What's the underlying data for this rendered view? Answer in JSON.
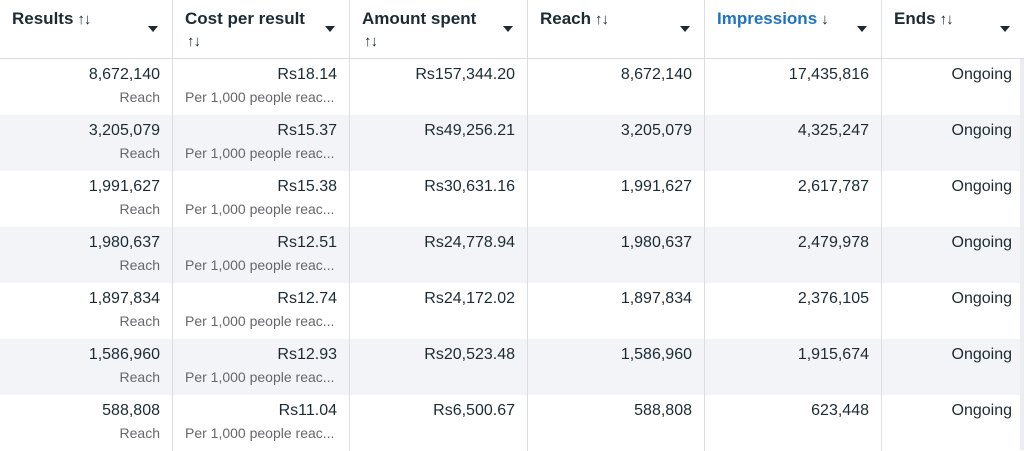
{
  "columns": [
    {
      "label": "Results",
      "sort_icon": "↑↓"
    },
    {
      "label": "Cost per result",
      "sort_icon": "↑↓"
    },
    {
      "label": "Amount spent",
      "sort_icon": "↑↓"
    },
    {
      "label": "Reach",
      "sort_icon": "↑↓"
    },
    {
      "label": "Impressions",
      "sort_icon": "↓"
    },
    {
      "label": "Ends",
      "sort_icon": "↑↓"
    }
  ],
  "rows": [
    {
      "results": "8,672,140",
      "results_sub": "Reach",
      "cost": "Rs18.14",
      "cost_sub": "Per 1,000 people reac...",
      "spent": "Rs157,344.20",
      "reach": "8,672,140",
      "impressions": "17,435,816",
      "ends": "Ongoing"
    },
    {
      "results": "3,205,079",
      "results_sub": "Reach",
      "cost": "Rs15.37",
      "cost_sub": "Per 1,000 people reac...",
      "spent": "Rs49,256.21",
      "reach": "3,205,079",
      "impressions": "4,325,247",
      "ends": "Ongoing"
    },
    {
      "results": "1,991,627",
      "results_sub": "Reach",
      "cost": "Rs15.38",
      "cost_sub": "Per 1,000 people reac...",
      "spent": "Rs30,631.16",
      "reach": "1,991,627",
      "impressions": "2,617,787",
      "ends": "Ongoing"
    },
    {
      "results": "1,980,637",
      "results_sub": "Reach",
      "cost": "Rs12.51",
      "cost_sub": "Per 1,000 people reac...",
      "spent": "Rs24,778.94",
      "reach": "1,980,637",
      "impressions": "2,479,978",
      "ends": "Ongoing"
    },
    {
      "results": "1,897,834",
      "results_sub": "Reach",
      "cost": "Rs12.74",
      "cost_sub": "Per 1,000 people reac...",
      "spent": "Rs24,172.02",
      "reach": "1,897,834",
      "impressions": "2,376,105",
      "ends": "Ongoing"
    },
    {
      "results": "1,586,960",
      "results_sub": "Reach",
      "cost": "Rs12.93",
      "cost_sub": "Per 1,000 people reac...",
      "spent": "Rs20,523.48",
      "reach": "1,586,960",
      "impressions": "1,915,674",
      "ends": "Ongoing"
    },
    {
      "results": "588,808",
      "results_sub": "Reach",
      "cost": "Rs11.04",
      "cost_sub": "Per 1,000 people reac...",
      "spent": "Rs6,500.67",
      "reach": "588,808",
      "impressions": "623,448",
      "ends": "Ongoing"
    }
  ],
  "colors": {
    "sorted_header": "#1d74c3",
    "alt_row": "#f2f4f7",
    "border": "#dadde1",
    "subtext": "#65676b"
  }
}
